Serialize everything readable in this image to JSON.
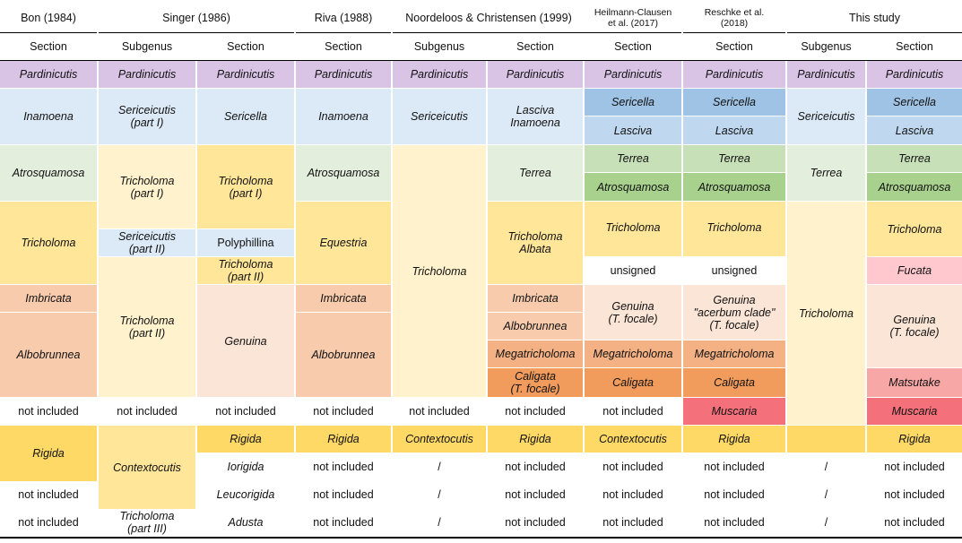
{
  "colors": {
    "purple": "#d9c4e6",
    "lightblue": "#dce9f6",
    "blue": "#9fc3e4",
    "midblue": "#bfd7ef",
    "lightgreen": "#e3efdc",
    "green1": "#c7e0b8",
    "green2": "#a9d18e",
    "paleyellow": "#fff2cc",
    "yellow": "#ffe699",
    "gold": "#ffd966",
    "peach": "#fbe5d6",
    "salmon": "#f8cbad",
    "salmon2": "#f4b183",
    "orange": "#f19c5d",
    "pink": "#ffc7ce",
    "rose": "#f8a7a7",
    "red": "#f4707a",
    "white": "#ffffff"
  },
  "table": {
    "authors": [
      "Bon (1984)",
      "Singer (1986)",
      "Riva (1988)",
      "Noordeloos & Christensen (1999)",
      "Heilmann-Clausen\net al. (2017)",
      "Reschke et al.\n(2018)",
      "This study"
    ],
    "ranks": [
      "Section",
      "Subgenus",
      "Section",
      "Section",
      "Subgenus",
      "Section",
      "Section",
      "Section",
      "Subgenus",
      "Section"
    ],
    "cells": [
      [
        "Pardinicutis",
        "Pardinicutis",
        "Pardinicutis",
        "Pardinicutis",
        "Pardinicutis",
        "Pardinicutis",
        "Pardinicutis",
        "Pardinicutis",
        "Pardinicutis",
        "Pardinicutis"
      ],
      [
        "Inamoena",
        "Sericeicutis\n(part I)",
        "Sericella",
        "Inamoena",
        "Sericeicutis",
        "Lasciva\nInamoena",
        "Sericella",
        "Sericella",
        "Sericeicutis",
        "Sericella"
      ],
      [
        "Lasciva",
        "Lasciva",
        "Lasciva"
      ],
      [
        "Atrosquamosa",
        "Tricholoma\n(part I)",
        "Tricholoma\n(part I)",
        "Atrosquamosa",
        "Terrea",
        "Terrea",
        "Terrea",
        "Terrea",
        "Terrea"
      ],
      [
        "Atrosquamosa",
        "Atrosquamosa",
        "Atrosquamosa"
      ],
      [
        "Tricholoma",
        "Sericeicutis\n(part II)",
        "Polyphillina",
        "Equestria",
        "Tricholoma",
        "Tricholoma\nAlbata",
        "Tricholoma",
        "Tricholoma",
        "Tricholoma"
      ],
      [
        "Tricholoma\n(part II)",
        "unsigned",
        "unsigned",
        "Fucata"
      ],
      [
        "Imbricata",
        "Tricholoma\n(part II)",
        "Genuina",
        "Imbricata",
        "Imbricata",
        "Genuina\n(T. focale)",
        "Genuina\n\"acerbum clade\"\n(T. focale)",
        "Genuina\n(T. focale)"
      ],
      [
        "Albobrunnea",
        "Albobrunnea",
        "Albobrunnea"
      ],
      [
        "Megatricholoma",
        "Megatricholoma",
        "Megatricholoma"
      ],
      [
        "Caligata\n(T. focale)",
        "Caligata",
        "Caligata",
        "Matsutake"
      ],
      [
        "not included",
        "not included",
        "not included",
        "not included",
        "not included",
        "not included",
        "not included",
        "Muscaria",
        "Muscaria"
      ],
      [
        "Rigida",
        "Contextocutis",
        "Rigida",
        "Rigida",
        "Contextocutis",
        "Rigida",
        "Contextocutis",
        "Rigida",
        "Rigida"
      ],
      [
        "Iorigida",
        "not included",
        "/",
        "not included",
        "not included",
        "not included",
        "/",
        "not included"
      ],
      [
        "not included",
        "Leucorigida",
        "not included",
        "/",
        "not included",
        "not included",
        "not included",
        "/",
        "not included"
      ],
      [
        "not included",
        "Tricholoma\n(part III)",
        "Adusta",
        "not included",
        "/",
        "not included",
        "not included",
        "not included",
        "/",
        "not included"
      ]
    ]
  }
}
